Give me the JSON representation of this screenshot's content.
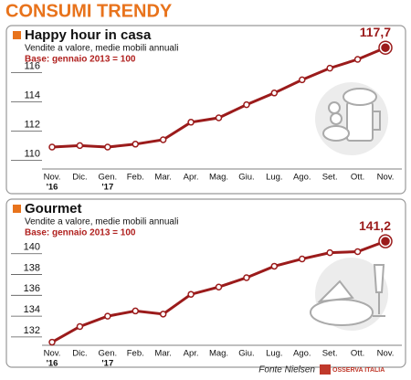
{
  "title": "CONSUMI TRENDY",
  "source": "Fonte Nielsen",
  "logo_text": "OSSERVA ITALIA",
  "chart_data": [
    {
      "type": "line",
      "title": "Happy hour in casa",
      "subtitle": "Vendite a valore, medie mobili annuali",
      "note": "Base: gennaio 2013 = 100",
      "categories": [
        "Nov.",
        "Dic.",
        "Gen.",
        "Feb.",
        "Mar.",
        "Apr.",
        "Mag.",
        "Giu.",
        "Lug.",
        "Ago.",
        "Set.",
        "Ott.",
        "Nov."
      ],
      "x_sublabels": [
        "'16",
        null,
        "'17",
        null,
        null,
        null,
        null,
        null,
        null,
        null,
        null,
        null,
        null
      ],
      "series": [
        {
          "name": "Happy hour in casa",
          "color": "#9b1b1b",
          "values": [
            110.9,
            111.0,
            110.9,
            111.1,
            111.4,
            112.6,
            112.9,
            113.8,
            114.6,
            115.5,
            116.3,
            116.9,
            117.7
          ],
          "value_labels": [
            null,
            null,
            null,
            null,
            null,
            null,
            null,
            null,
            null,
            null,
            null,
            null,
            "117,7"
          ]
        }
      ],
      "ylim": [
        109.4,
        118.4
      ],
      "yticks": [
        110,
        112,
        114,
        116
      ],
      "grid": false
    },
    {
      "type": "line",
      "title": "Gourmet",
      "subtitle": "Vendite a valore, medie mobili annuali",
      "note": "Base: gennaio 2013 = 100",
      "categories": [
        "Nov.",
        "Dic.",
        "Gen.",
        "Feb.",
        "Mar.",
        "Apr.",
        "Mag.",
        "Giu.",
        "Lug.",
        "Ago.",
        "Set.",
        "Ott.",
        "Nov."
      ],
      "x_sublabels": [
        "'16",
        null,
        "'17",
        null,
        null,
        null,
        null,
        null,
        null,
        null,
        null,
        null,
        null
      ],
      "series": [
        {
          "name": "Gourmet",
          "color": "#9b1b1b",
          "values": [
            131.5,
            133.0,
            134.0,
            134.5,
            134.2,
            136.1,
            136.8,
            137.7,
            138.8,
            139.5,
            140.1,
            140.2,
            141.2
          ],
          "value_labels": [
            null,
            null,
            null,
            null,
            null,
            null,
            null,
            null,
            null,
            null,
            null,
            null,
            "141,2"
          ]
        }
      ],
      "ylim": [
        131.2,
        142.0
      ],
      "yticks": [
        132,
        134,
        136,
        138,
        140
      ],
      "grid": false
    }
  ]
}
